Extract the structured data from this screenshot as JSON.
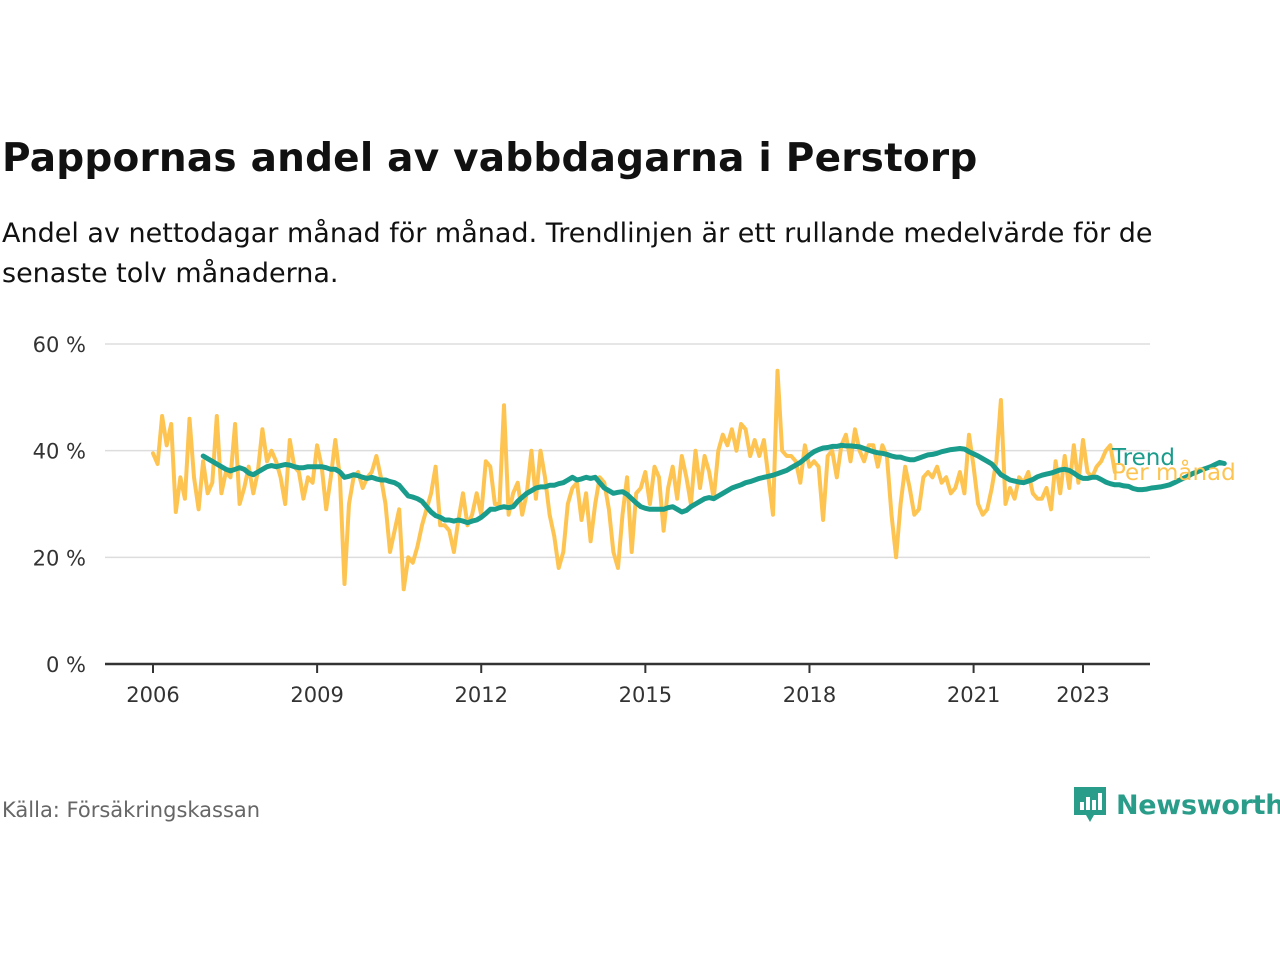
{
  "header": {
    "title": "Pappornas andel av vabbdagarna i Perstorp",
    "subtitle": "Andel av nettodagar månad för månad. Trendlinjen är ett rullande medelvärde för de senaste tolv månaderna."
  },
  "footer": {
    "source": "Källa: Försäkringskassan",
    "brand": "Newsworthy"
  },
  "colors": {
    "trend": "#1a9c8c",
    "monthly": "#fdc452",
    "grid": "#dddddd",
    "axis": "#333333",
    "brand": "#2a9d8a"
  },
  "chart_data": {
    "type": "line",
    "x_unit": "year",
    "xlim": [
      2006,
      2023.4
    ],
    "ylim": [
      0,
      60
    ],
    "y_ticks": [
      {
        "value": 0,
        "label": "0 %"
      },
      {
        "value": 20,
        "label": "20 %"
      },
      {
        "value": 40,
        "label": "40 %"
      },
      {
        "value": 60,
        "label": "60 %"
      }
    ],
    "x_ticks": [
      {
        "value": 2006,
        "label": "2006"
      },
      {
        "value": 2009,
        "label": "2009"
      },
      {
        "value": 2012,
        "label": "2012"
      },
      {
        "value": 2015,
        "label": "2015"
      },
      {
        "value": 2018,
        "label": "2018"
      },
      {
        "value": 2021,
        "label": "2021"
      },
      {
        "value": 2023,
        "label": "2023"
      }
    ],
    "grid": true,
    "series": [
      {
        "name": "Per månad",
        "start": 2006.0,
        "step": 0.08333,
        "values": [
          39.5,
          37.5,
          46.5,
          41,
          45,
          28.5,
          35,
          31,
          46,
          35,
          29,
          38,
          32,
          34,
          46.5,
          32,
          36,
          35,
          45,
          30,
          33,
          37,
          32,
          36,
          44,
          38,
          40,
          38,
          35,
          30,
          42,
          37,
          36,
          31,
          35,
          34,
          41,
          37,
          29,
          35,
          42,
          35,
          15,
          30,
          35,
          36,
          33,
          35,
          36,
          39,
          35,
          30,
          21,
          25,
          29,
          14,
          20,
          19,
          22,
          26,
          29,
          32,
          37,
          26,
          26,
          25,
          21,
          27,
          32,
          26,
          28,
          32,
          28,
          38,
          37,
          30,
          30,
          48.5,
          28,
          32,
          34,
          28,
          32,
          40,
          31,
          40,
          35,
          28,
          24,
          18,
          21,
          30,
          33,
          34,
          27,
          32,
          23,
          30,
          35,
          34,
          29,
          21,
          18,
          28,
          35,
          21,
          32,
          33,
          36,
          30,
          37,
          35,
          25,
          33,
          37,
          31,
          39,
          35,
          30,
          40,
          33,
          39,
          36,
          31,
          40,
          43,
          41,
          44,
          40,
          45,
          44,
          39,
          42,
          39,
          42,
          35,
          28,
          55,
          40,
          39,
          39,
          38,
          34,
          41,
          37,
          38,
          37,
          27,
          39,
          40,
          35,
          41,
          43,
          38,
          44,
          40,
          38,
          41,
          41,
          37,
          41,
          39,
          28,
          20,
          30,
          37,
          33,
          28,
          29,
          35,
          36,
          35,
          37,
          34,
          35,
          32,
          33,
          36,
          32,
          43,
          37,
          30,
          28,
          29,
          33,
          38,
          49.5,
          30,
          33,
          31,
          35,
          34,
          36,
          32,
          31,
          31,
          33,
          29,
          38,
          32,
          39,
          33,
          41,
          34,
          42,
          36,
          35,
          37,
          38,
          40,
          41,
          36
        ]
      },
      {
        "name": "Trend",
        "start": 2006.917,
        "step": 0.08333,
        "values": [
          39,
          38.5,
          38,
          37.5,
          37,
          36.5,
          36.2,
          36.5,
          36.8,
          36.5,
          35.8,
          35.5,
          36,
          36.5,
          37,
          37.2,
          37,
          37.2,
          37.4,
          37.3,
          37,
          36.8,
          36.8,
          37,
          37,
          37,
          37,
          36.8,
          36.5,
          36.5,
          36,
          35,
          35.2,
          35.5,
          35.3,
          35,
          34.8,
          35,
          34.7,
          34.5,
          34.5,
          34.2,
          34,
          33.5,
          32.5,
          31.5,
          31.3,
          31,
          30.5,
          29.5,
          28.5,
          27.8,
          27.5,
          27,
          27,
          26.8,
          27,
          26.8,
          26.5,
          26.8,
          27,
          27.5,
          28.2,
          29,
          29,
          29.3,
          29.5,
          29.3,
          29.5,
          30.5,
          31.3,
          32,
          32.5,
          33,
          33.2,
          33.2,
          33.5,
          33.5,
          33.8,
          34,
          34.5,
          35,
          34.5,
          34.7,
          35,
          34.8,
          35,
          34,
          33,
          32.5,
          32,
          32.2,
          32.3,
          31.8,
          31,
          30.2,
          29.5,
          29.2,
          29,
          29,
          29,
          29,
          29.3,
          29.5,
          29,
          28.5,
          28.8,
          29.5,
          30,
          30.5,
          31,
          31.2,
          31,
          31.5,
          32,
          32.5,
          33,
          33.3,
          33.6,
          34,
          34.2,
          34.5,
          34.8,
          35,
          35.2,
          35.4,
          35.7,
          36,
          36.3,
          36.8,
          37.3,
          37.8,
          38.5,
          39.2,
          39.8,
          40.2,
          40.5,
          40.6,
          40.8,
          40.8,
          41,
          40.9,
          40.9,
          40.8,
          40.7,
          40.4,
          40.1,
          39.8,
          39.6,
          39.5,
          39.3,
          39,
          38.8,
          38.8,
          38.5,
          38.3,
          38.3,
          38.6,
          38.9,
          39.2,
          39.3,
          39.5,
          39.8,
          40,
          40.2,
          40.3,
          40.4,
          40.3,
          39.8,
          39.4,
          39,
          38.5,
          38,
          37.5,
          36.5,
          35.5,
          35,
          34.5,
          34.3,
          34.1,
          34,
          34.3,
          34.6,
          35.1,
          35.4,
          35.6,
          35.8,
          36.1,
          36.4,
          36.5,
          36.3,
          35.8,
          35.2,
          34.8,
          34.8,
          35,
          35,
          34.6,
          34.1,
          33.8,
          33.6,
          33.6,
          33.4,
          33.3,
          32.9,
          32.7,
          32.7,
          32.8,
          33,
          33.1,
          33.2,
          33.4,
          33.6,
          34,
          34.4,
          34.8,
          35.2,
          35.7,
          36,
          36.4,
          36.7,
          37,
          37.4,
          37.8,
          37.6
        ]
      }
    ],
    "end_labels": [
      {
        "series": "Trend",
        "text": "Trend"
      },
      {
        "series": "Per månad",
        "text": "Per månad"
      }
    ]
  }
}
